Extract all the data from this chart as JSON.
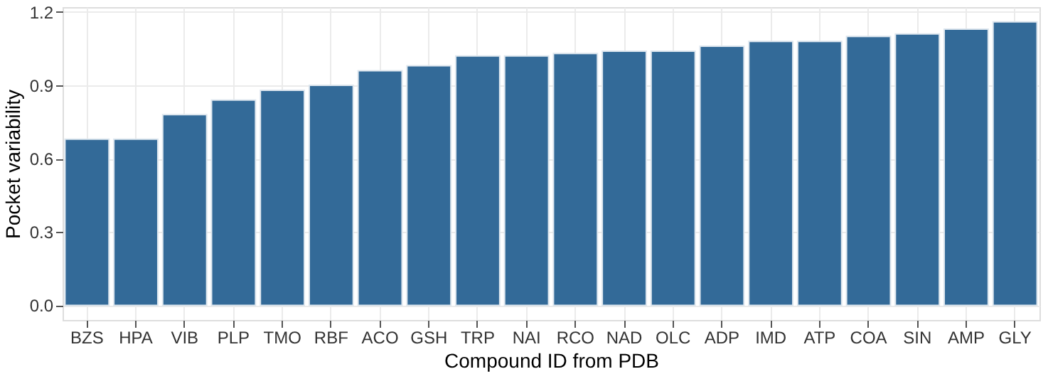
{
  "chart_data": {
    "type": "bar",
    "xlabel": "Compound ID from PDB",
    "ylabel": "Pocket variability",
    "categories": [
      "BZS",
      "HPA",
      "VIB",
      "PLP",
      "TMO",
      "RBF",
      "ACO",
      "GSH",
      "TRP",
      "NAI",
      "RCO",
      "NAD",
      "OLC",
      "ADP",
      "IMD",
      "ATP",
      "COA",
      "SIN",
      "AMP",
      "GLY"
    ],
    "values": [
      0.68,
      0.68,
      0.78,
      0.84,
      0.88,
      0.9,
      0.96,
      0.98,
      1.02,
      1.02,
      1.03,
      1.04,
      1.04,
      1.06,
      1.08,
      1.08,
      1.1,
      1.11,
      1.13,
      1.16
    ],
    "color": "#336a98",
    "ylim": [
      -0.06,
      1.22
    ],
    "yticks": [
      {
        "value": 0,
        "label": "0.0"
      },
      {
        "value": 0.3,
        "label": "0.3"
      },
      {
        "value": 0.6,
        "label": "0.6"
      },
      {
        "value": 0.9,
        "label": "0.9"
      },
      {
        "value": 1.2,
        "label": "1.2"
      }
    ],
    "grid": true
  }
}
